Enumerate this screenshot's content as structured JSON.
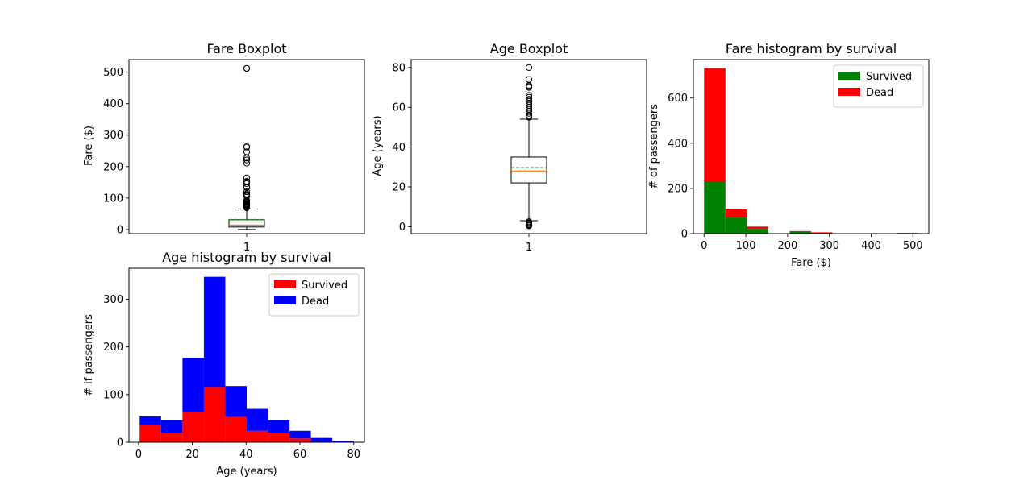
{
  "chart_data": [
    {
      "type": "boxplot",
      "title": "Fare Boxplot",
      "xlabel": "",
      "ylabel": "Fare ($)",
      "categories": [
        "1"
      ],
      "ylim": [
        -13,
        540
      ],
      "yticks": [
        0,
        100,
        200,
        300,
        400,
        500
      ],
      "box": {
        "whisker_low": 0,
        "q1": 8,
        "median": 14,
        "mean": 32,
        "q3": 31,
        "whisker_high": 65
      },
      "outliers": [
        69,
        71,
        73,
        75,
        77,
        78,
        80,
        82,
        83,
        86,
        89,
        91,
        93,
        106,
        108,
        110,
        113,
        120,
        133,
        135,
        146,
        151,
        153,
        164,
        211,
        221,
        227,
        247,
        262,
        263,
        512,
        512
      ],
      "colors": {
        "box": "#000000",
        "median": "#ff7f0e",
        "mean": "#2ca02c"
      }
    },
    {
      "type": "boxplot",
      "title": "Age Boxplot",
      "xlabel": "",
      "ylabel": "Age (years)",
      "categories": [
        "1"
      ],
      "ylim": [
        -3.5,
        84
      ],
      "yticks": [
        0,
        20,
        40,
        60,
        80
      ],
      "box": {
        "whisker_low": 3,
        "q1": 22,
        "median": 28,
        "mean": 29.7,
        "q3": 35,
        "whisker_high": 54
      },
      "outliers": [
        0.4,
        0.7,
        0.8,
        1,
        1.5,
        2,
        2.5,
        55,
        55.5,
        56,
        57,
        58,
        59,
        60,
        61,
        62,
        63,
        64,
        65,
        66,
        70,
        70.5,
        71,
        74,
        80
      ],
      "colors": {
        "box": "#000000",
        "median": "#ff7f0e",
        "mean": "#2ca02c"
      }
    },
    {
      "type": "stacked_histogram",
      "title": "Fare histogram by survival",
      "xlabel": "Fare ($)",
      "ylabel": "# of passengers",
      "bins": [
        0,
        51.2,
        102.5,
        153.7,
        204.9,
        256.2,
        307.4,
        358.6,
        409.9,
        461.1,
        512.3
      ],
      "xlim": [
        -25.6,
        538
      ],
      "ylim": [
        0,
        770
      ],
      "xticks": [
        0,
        100,
        200,
        300,
        400,
        500
      ],
      "yticks": [
        0,
        200,
        400,
        600
      ],
      "series": [
        {
          "name": "Survived",
          "color": "#008000",
          "values": [
            230,
            71,
            21,
            2,
            9,
            4,
            0,
            0,
            0,
            3
          ]
        },
        {
          "name": "Dead",
          "color": "#ff0000",
          "values": [
            502,
            36,
            10,
            0,
            2,
            2,
            0,
            0,
            0,
            0
          ]
        }
      ],
      "legend": "upper right"
    },
    {
      "type": "stacked_histogram",
      "title": "Age histogram by survival",
      "xlabel": "Age (years)",
      "ylabel": "# if passengers",
      "bins": [
        0.42,
        8.38,
        16.34,
        24.3,
        32.25,
        40.21,
        48.17,
        56.13,
        64.08,
        72.04,
        80
      ],
      "xlim": [
        -3.56,
        83.98
      ],
      "ylim": [
        0,
        365
      ],
      "xticks": [
        0,
        20,
        40,
        60,
        80
      ],
      "yticks": [
        0,
        100,
        200,
        300
      ],
      "series": [
        {
          "name": "Survived",
          "color": "#ff0000",
          "values": [
            36,
            19,
            63,
            116,
            53,
            24,
            20,
            8,
            0,
            0
          ]
        },
        {
          "name": "Dead",
          "color": "#0000ff",
          "values": [
            18,
            27,
            114,
            231,
            65,
            46,
            26,
            16,
            9,
            3
          ]
        }
      ],
      "legend": "upper right"
    }
  ]
}
